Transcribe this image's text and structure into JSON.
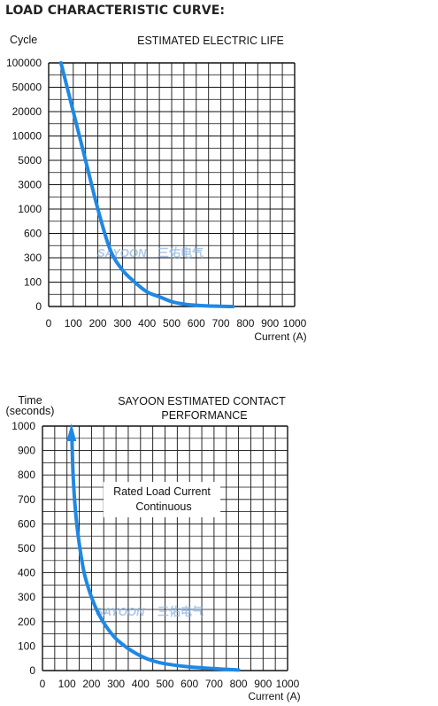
{
  "page": {
    "heading": "LOAD CHARACTERISTIC CURVE:"
  },
  "watermark": {
    "brand": "SAYOON",
    "cn": "三佑电气"
  },
  "colors": {
    "curve": "#1f88e5",
    "grid": "#111111",
    "text": "#111111",
    "watermark": "#8fb6e2"
  },
  "chart_data": [
    {
      "type": "line",
      "title": "ESTIMATED ELECTRIC LIFE",
      "ylabel": "Cycle",
      "xlabel": "Current (A)",
      "x_ticks": [
        "0",
        "100",
        "200",
        "300",
        "400",
        "500",
        "600",
        "700",
        "800",
        "900",
        "1000"
      ],
      "y_ticks": [
        "100000",
        "50000",
        "20000",
        "10000",
        "5000",
        "3000",
        "1000",
        "600",
        "300",
        "100",
        "0"
      ],
      "y_scale": "categorical-ticks",
      "xlim": [
        0,
        1000
      ],
      "grid": true,
      "series": [
        {
          "x": [
            50,
            100,
            150,
            200,
            250,
            300,
            350,
            400,
            450,
            500,
            550,
            600,
            650,
            700,
            750
          ],
          "y": [
            100000,
            20000,
            5000,
            1000,
            400,
            200,
            100,
            60,
            40,
            20,
            10,
            5,
            2,
            1,
            0
          ]
        }
      ]
    },
    {
      "type": "line",
      "title": "SAYOON ESTIMATED CONTACT PERFORMANCE",
      "title_lines": [
        "SAYOON ESTIMATED CONTACT",
        "PERFORMANCE"
      ],
      "ylabel_lines": [
        "Time",
        "(seconds)"
      ],
      "xlabel": "Current (A)",
      "annotation_lines": [
        "Rated Load Current",
        "Continuous"
      ],
      "x_ticks": [
        "0",
        "100",
        "200",
        "300",
        "400",
        "500",
        "600",
        "700",
        "800",
        "900",
        "1000"
      ],
      "y_ticks": [
        "1000",
        "900",
        "800",
        "700",
        "600",
        "500",
        "400",
        "300",
        "200",
        "100",
        "0"
      ],
      "xlim": [
        0,
        1000
      ],
      "ylim": [
        0,
        1000
      ],
      "grid": true,
      "arrow_at_start": true,
      "series": [
        {
          "x": [
            120,
            125,
            135,
            150,
            170,
            200,
            230,
            260,
            300,
            350,
            400,
            450,
            500,
            600,
            700,
            800
          ],
          "y": [
            960,
            800,
            650,
            520,
            400,
            300,
            230,
            180,
            130,
            90,
            60,
            40,
            28,
            15,
            8,
            2
          ]
        }
      ]
    }
  ]
}
